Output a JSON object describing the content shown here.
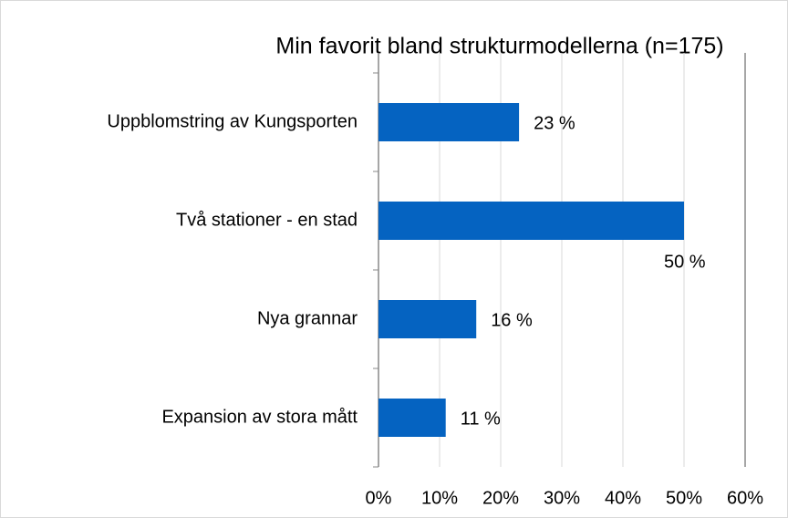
{
  "chart_data": {
    "type": "bar",
    "orientation": "horizontal",
    "title": "Min favorit bland strukturmodellerna (n=175)",
    "categories": [
      "Uppblomstring av Kungsporten",
      "Två stationer - en stad",
      "Nya grannar",
      "Expansion av stora mått"
    ],
    "values": [
      23,
      50,
      16,
      11
    ],
    "value_labels": [
      "23 %",
      "50 %",
      "16 %",
      "11 %"
    ],
    "color": "#0563c1",
    "xlim": [
      0,
      60
    ],
    "xticks": [
      {
        "value": 0,
        "label": "0%"
      },
      {
        "value": 10,
        "label": "10%"
      },
      {
        "value": 20,
        "label": "20%"
      },
      {
        "value": 30,
        "label": "30%"
      },
      {
        "value": 40,
        "label": "40%"
      },
      {
        "value": 50,
        "label": "50%"
      },
      {
        "value": 60,
        "label": "60%"
      }
    ],
    "grid": true
  }
}
